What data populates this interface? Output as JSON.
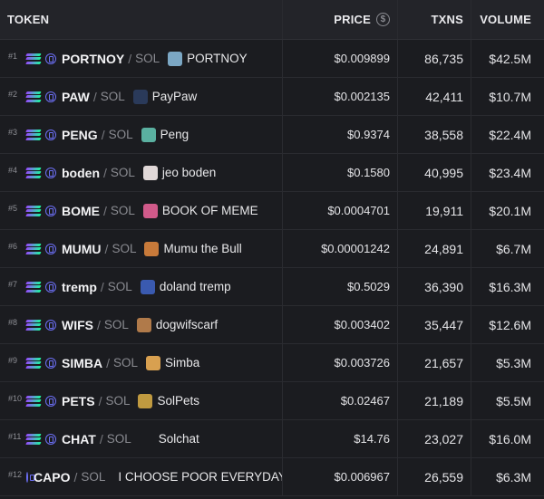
{
  "header": {
    "token": "TOKEN",
    "price": "PRICE",
    "dollar_symbol": "$",
    "txns": "TXNS",
    "volume": "VOLUME"
  },
  "chain_label": "SOL",
  "rows": [
    {
      "rank": "#1",
      "symbol": "PORTNOY",
      "name": "PORTNOY",
      "price": "$0.009899",
      "txns": "86,735",
      "volume": "$42.5M",
      "avatar_color": "#7ba7c4"
    },
    {
      "rank": "#2",
      "symbol": "PAW",
      "name": "PayPaw",
      "price": "$0.002135",
      "txns": "42,411",
      "volume": "$10.7M",
      "avatar_color": "#2a3a5a"
    },
    {
      "rank": "#3",
      "symbol": "PENG",
      "name": "Peng",
      "price": "$0.9374",
      "txns": "38,558",
      "volume": "$22.4M",
      "avatar_color": "#5ab0a0"
    },
    {
      "rank": "#4",
      "symbol": "boden",
      "name": "jeo boden",
      "price": "$0.1580",
      "txns": "40,995",
      "volume": "$23.4M",
      "avatar_color": "#e0d8d8"
    },
    {
      "rank": "#5",
      "symbol": "BOME",
      "name": "BOOK OF MEME",
      "price": "$0.0004701",
      "txns": "19,911",
      "volume": "$20.1M",
      "avatar_color": "#d05a8a"
    },
    {
      "rank": "#6",
      "symbol": "MUMU",
      "name": "Mumu the Bull",
      "price": "$0.00001242",
      "txns": "24,891",
      "volume": "$6.7M",
      "avatar_color": "#c87a3a"
    },
    {
      "rank": "#7",
      "symbol": "tremp",
      "name": "doland tremp",
      "price": "$0.5029",
      "txns": "36,390",
      "volume": "$16.3M",
      "avatar_color": "#3a5ab0"
    },
    {
      "rank": "#8",
      "symbol": "WIFS",
      "name": "dogwifscarf",
      "price": "$0.003402",
      "txns": "35,447",
      "volume": "$12.6M",
      "avatar_color": "#b07a4a"
    },
    {
      "rank": "#9",
      "symbol": "SIMBA",
      "name": "Simba",
      "price": "$0.003726",
      "txns": "21,657",
      "volume": "$5.3M",
      "avatar_color": "#d8a050"
    },
    {
      "rank": "#10",
      "symbol": "PETS",
      "name": "SolPets",
      "price": "$0.02467",
      "txns": "21,189",
      "volume": "$5.5M",
      "avatar_color": "#c09a40"
    },
    {
      "rank": "#11",
      "symbol": "CHAT",
      "name": "Solchat",
      "price": "$14.76",
      "txns": "23,027",
      "volume": "$16.0M",
      "avatar_color": "#1b1c20"
    },
    {
      "rank": "#12",
      "symbol": "CAPO",
      "name": "I CHOOSE POOR EVERYDAY",
      "price": "$0.006967",
      "txns": "26,559",
      "volume": "$6.3M",
      "avatar_color": "#8a7a6a"
    }
  ]
}
